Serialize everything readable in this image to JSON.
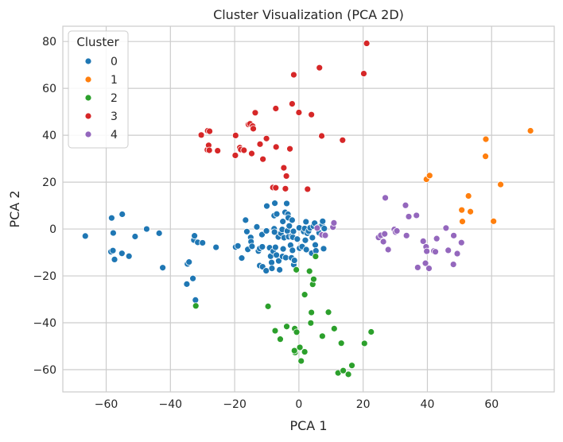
{
  "chart_data": {
    "type": "scatter",
    "title": "Cluster Visualization (PCA 2D)",
    "xlabel": "PCA 1",
    "ylabel": "PCA 2",
    "xlim": [
      -73.5,
      79.5
    ],
    "ylim": [
      -69.5,
      86.5
    ],
    "xticks": [
      -60,
      -40,
      -20,
      0,
      20,
      40,
      60
    ],
    "yticks": [
      -60,
      -40,
      -20,
      0,
      20,
      40,
      60,
      80
    ],
    "grid": true,
    "legend": {
      "title": "Cluster",
      "placement": "top-left"
    },
    "series": [
      {
        "name": "0",
        "color": "#1f77b4",
        "points": [
          [
            -66.5,
            -3
          ],
          [
            -58.3,
            4.7
          ],
          [
            -58.5,
            -9.7
          ],
          [
            -57.9,
            -9.2
          ],
          [
            -57.8,
            -1.7
          ],
          [
            -57.4,
            -13
          ],
          [
            -55,
            6.3
          ],
          [
            -55.1,
            -10.4
          ],
          [
            -52.9,
            -11.6
          ],
          [
            -51,
            -3.2
          ],
          [
            -47.4,
            0
          ],
          [
            -43.5,
            -1.8
          ],
          [
            -42.4,
            -16.5
          ],
          [
            -34.9,
            -23.5
          ],
          [
            -34.7,
            -14.9
          ],
          [
            -34.2,
            -14.1
          ],
          [
            -33,
            -21.1
          ],
          [
            -32.7,
            -4.7
          ],
          [
            -32.5,
            -2.9
          ],
          [
            -32.2,
            -30.3
          ],
          [
            -31.5,
            -5.7
          ],
          [
            -30,
            -5.9
          ],
          [
            -25.8,
            -7.8
          ],
          [
            -19.7,
            -7.7
          ],
          [
            -19,
            -7.2
          ],
          [
            -17.8,
            -12.4
          ],
          [
            -16.6,
            3.8
          ],
          [
            -16.2,
            -1.1
          ],
          [
            -15.9,
            -8.7
          ],
          [
            -15,
            -3.6
          ],
          [
            -14.9,
            -5.4
          ],
          [
            -14.6,
            -7.4
          ],
          [
            -13.1,
            0.9
          ],
          [
            -12.6,
            -9.4
          ],
          [
            -12.2,
            -15.6
          ],
          [
            -12.2,
            -8.3
          ],
          [
            -11.5,
            -2.4
          ],
          [
            -11.4,
            -7.6
          ],
          [
            -11.3,
            -16.1
          ],
          [
            -10.2,
            -17.8
          ],
          [
            -10.1,
            -0.8
          ],
          [
            -10,
            9.8
          ],
          [
            -9.1,
            -8
          ],
          [
            -8.8,
            -11.6
          ],
          [
            -8.5,
            -14.3
          ],
          [
            -8.4,
            -16.8
          ],
          [
            -8,
            -9.5
          ],
          [
            -7.7,
            5.7
          ],
          [
            -7.7,
            0.1
          ],
          [
            -7.6,
            -1.3
          ],
          [
            -7.5,
            11
          ],
          [
            -7.3,
            -7.8
          ],
          [
            -7,
            -11.1
          ],
          [
            -6.9,
            6.4
          ],
          [
            -6.4,
            -3.4
          ],
          [
            -6.3,
            -13.6
          ],
          [
            -6,
            -17.4
          ],
          [
            -5.6,
            -1.8
          ],
          [
            -5.2,
            -0.2
          ],
          [
            -5.1,
            -11.7
          ],
          [
            -5,
            3.2
          ],
          [
            -4.9,
            -8.5
          ],
          [
            -4.6,
            -3.7
          ],
          [
            -4.3,
            7.1
          ],
          [
            -4.1,
            -12.2
          ],
          [
            -3.8,
            10.9
          ],
          [
            -3.6,
            -0.8
          ],
          [
            -3.4,
            6.3
          ],
          [
            -3.3,
            4.8
          ],
          [
            -3.2,
            -3.3
          ],
          [
            -3,
            1.3
          ],
          [
            -2.6,
            -6.9
          ],
          [
            -2.3,
            -12.3
          ],
          [
            -2.2,
            -3
          ],
          [
            -2.1,
            3.8
          ],
          [
            -2,
            -9.1
          ],
          [
            -1.9,
            -3.5
          ],
          [
            -1.7,
            -1
          ],
          [
            -1.6,
            -15.2
          ],
          [
            -1.4,
            -13.4
          ],
          [
            -0.5,
            -4.3
          ],
          [
            0.1,
            0.5
          ],
          [
            0.2,
            -8.2
          ],
          [
            1,
            -7.5
          ],
          [
            1.5,
            -1.1
          ],
          [
            1.8,
            0.2
          ],
          [
            2,
            -4.8
          ],
          [
            2.2,
            3.1
          ],
          [
            2.3,
            -8.8
          ],
          [
            2.6,
            -1.8
          ],
          [
            3,
            -0.9
          ],
          [
            3.5,
            0.5
          ],
          [
            4,
            -10.3
          ],
          [
            4.2,
            -3.7
          ],
          [
            4.5,
            1.2
          ],
          [
            4.9,
            2.5
          ],
          [
            5.1,
            -6.8
          ],
          [
            5.3,
            -9.3
          ],
          [
            5.9,
            0.7
          ],
          [
            6.3,
            -1.6
          ],
          [
            7.2,
            1.6
          ],
          [
            7.4,
            3.3
          ],
          [
            7.6,
            -2.5
          ],
          [
            7.7,
            -8.4
          ],
          [
            7.9,
            0.2
          ]
        ]
      },
      {
        "name": "1",
        "color": "#ff7f0e",
        "points": [
          [
            39.7,
            21.2
          ],
          [
            40.7,
            22.8
          ],
          [
            50.7,
            8.1
          ],
          [
            50.9,
            3.2
          ],
          [
            52.8,
            14.1
          ],
          [
            53.4,
            7.4
          ],
          [
            58.1,
            31
          ],
          [
            58.2,
            38.3
          ],
          [
            60.6,
            3.3
          ],
          [
            62.8,
            19
          ],
          [
            72.1,
            41.9
          ]
        ]
      },
      {
        "name": "2",
        "color": "#2ca02c",
        "points": [
          [
            -32.1,
            -32.8
          ],
          [
            -9.6,
            -33
          ],
          [
            -7.4,
            -43.4
          ],
          [
            -5.8,
            -47
          ],
          [
            -3.8,
            -41.6
          ],
          [
            -1.2,
            -52.7
          ],
          [
            -1.4,
            -51.9
          ],
          [
            -1.3,
            -42.5
          ],
          [
            -0.8,
            -17.4
          ],
          [
            -0.7,
            -44
          ],
          [
            0.3,
            -50.5
          ],
          [
            0.7,
            -56.3
          ],
          [
            1.8,
            -52.4
          ],
          [
            1.8,
            -28
          ],
          [
            3.3,
            -18
          ],
          [
            3.7,
            -40.1
          ],
          [
            3.9,
            -35.6
          ],
          [
            4.3,
            -23.6
          ],
          [
            4.6,
            -21.4
          ],
          [
            5.2,
            -11.7
          ],
          [
            7.3,
            -45.7
          ],
          [
            9.2,
            -35.5
          ],
          [
            11,
            -42.5
          ],
          [
            12.2,
            -61.4
          ],
          [
            13.2,
            -48.7
          ],
          [
            13.8,
            -60.4
          ],
          [
            15.4,
            -62
          ],
          [
            16.5,
            -58.2
          ],
          [
            20.4,
            -48.8
          ],
          [
            22.5,
            -43.9
          ]
        ]
      },
      {
        "name": "3",
        "color": "#d62728",
        "points": [
          [
            -30.4,
            40.1
          ],
          [
            -28.5,
            33.8
          ],
          [
            -28.4,
            41.9
          ],
          [
            -28.1,
            35.7
          ],
          [
            -27.9,
            33.6
          ],
          [
            -27.8,
            41.7
          ],
          [
            -25.3,
            33.4
          ],
          [
            -19.8,
            31.4
          ],
          [
            -19.7,
            39.9
          ],
          [
            -18.4,
            34.7
          ],
          [
            -18.1,
            33.9
          ],
          [
            -17.1,
            33.6
          ],
          [
            -15.7,
            44.6
          ],
          [
            -15.2,
            44.9
          ],
          [
            -14.7,
            32.2
          ],
          [
            -14.4,
            43.9
          ],
          [
            -14.2,
            42.8
          ],
          [
            -13.6,
            49.6
          ],
          [
            -12.1,
            36.2
          ],
          [
            -11.2,
            29.8
          ],
          [
            -10.1,
            38.6
          ],
          [
            -8.1,
            17.7
          ],
          [
            -7.2,
            17.6
          ],
          [
            -7.2,
            51.4
          ],
          [
            -7.1,
            35
          ],
          [
            -4.7,
            26.1
          ],
          [
            -4.2,
            17.2
          ],
          [
            -3.9,
            22.6
          ],
          [
            -2.8,
            34.2
          ],
          [
            -2.1,
            53.4
          ],
          [
            -1.6,
            65.8
          ],
          [
            0,
            49.7
          ],
          [
            2.7,
            17
          ],
          [
            3.9,
            48.8
          ],
          [
            6.4,
            68.8
          ],
          [
            7.1,
            39.7
          ],
          [
            13.6,
            37.9
          ],
          [
            20.2,
            66.3
          ],
          [
            21.1,
            79.2
          ]
        ]
      },
      {
        "name": "4",
        "color": "#9467bd",
        "points": [
          [
            5.7,
            0.4
          ],
          [
            7.2,
            -2.5
          ],
          [
            8.2,
            -2.7
          ],
          [
            10.6,
            0.8
          ],
          [
            10.9,
            2.6
          ],
          [
            24.8,
            -3.6
          ],
          [
            25.5,
            -2.7
          ],
          [
            26.3,
            -5.4
          ],
          [
            26.7,
            -2.1
          ],
          [
            26.9,
            13.3
          ],
          [
            27.8,
            -8.8
          ],
          [
            29.7,
            -0.2
          ],
          [
            30.1,
            -1.3
          ],
          [
            30.5,
            -0.8
          ],
          [
            33.2,
            10.1
          ],
          [
            33.5,
            -2.8
          ],
          [
            34.2,
            5.3
          ],
          [
            36.6,
            5.8
          ],
          [
            37,
            -16.4
          ],
          [
            38.7,
            -5.2
          ],
          [
            39.4,
            -14.6
          ],
          [
            39.6,
            -7.6
          ],
          [
            39.8,
            -9.5
          ],
          [
            40.5,
            -16.8
          ],
          [
            42,
            -9.4
          ],
          [
            42.5,
            -9.7
          ],
          [
            42.9,
            -4.1
          ],
          [
            45.8,
            0.4
          ],
          [
            46.5,
            -9.1
          ],
          [
            48.2,
            -2.8
          ],
          [
            48.1,
            -15.1
          ],
          [
            49.3,
            -10.5
          ],
          [
            50.6,
            -5.8
          ]
        ]
      }
    ]
  }
}
